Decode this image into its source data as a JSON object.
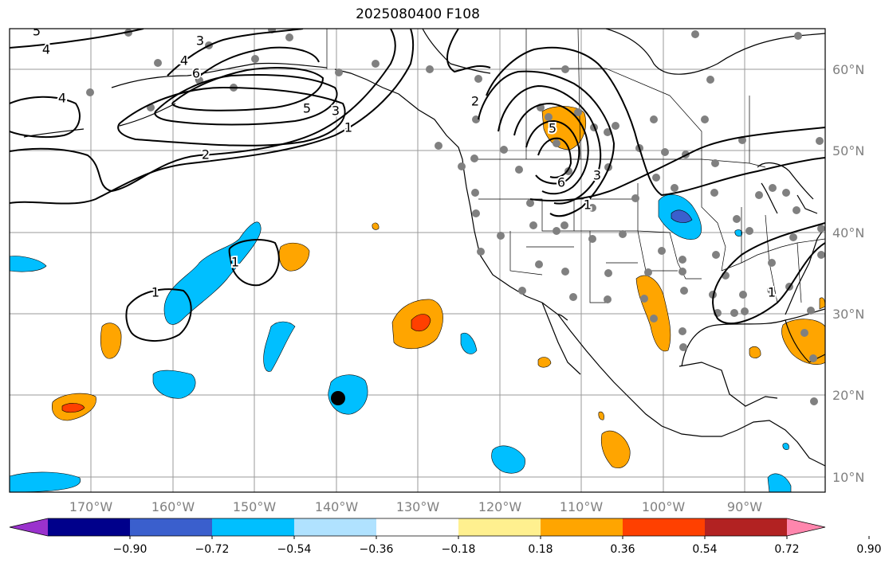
{
  "title": "2025080400 F108",
  "lon_labels": [
    "170°W",
    "160°W",
    "150°W",
    "140°W",
    "130°W",
    "120°W",
    "110°W",
    "100°W",
    "90°W"
  ],
  "lat_labels": [
    "60°N",
    "50°N",
    "40°N",
    "30°N",
    "20°N",
    "10°N"
  ],
  "colorbar": {
    "colors": [
      "#9a32cd",
      "#00008b",
      "#3a5fcd",
      "#00bfff",
      "#b0e2ff",
      "#ffffff",
      "#fff08f",
      "#ffa500",
      "#ff4000",
      "#b22222",
      "#ff86ad"
    ],
    "ticks": [
      "−0.90",
      "−0.72",
      "−0.54",
      "−0.36",
      "−0.18",
      "0.18",
      "0.36",
      "0.54",
      "0.72",
      "0.90"
    ]
  },
  "contour_labels": [
    {
      "name": "contour-label-5-nw",
      "text": "5"
    },
    {
      "name": "contour-label-4-nw",
      "text": "4"
    },
    {
      "name": "contour-label-3-alaska",
      "text": "3"
    },
    {
      "name": "contour-label-4-alaska",
      "text": "4"
    },
    {
      "name": "contour-label-6-alaska",
      "text": "6"
    },
    {
      "name": "contour-label-4-west",
      "text": "4"
    },
    {
      "name": "contour-label-5-gulf",
      "text": "5"
    },
    {
      "name": "contour-label-3-gulf",
      "text": "3"
    },
    {
      "name": "contour-label-1-gulf",
      "text": "1"
    },
    {
      "name": "contour-label-2-pacific",
      "text": "2"
    },
    {
      "name": "contour-label-2-canada",
      "text": "2"
    },
    {
      "name": "contour-label-5-canada",
      "text": "5"
    },
    {
      "name": "contour-label-6-canada",
      "text": "6"
    },
    {
      "name": "contour-label-3-canada",
      "text": "3"
    },
    {
      "name": "contour-label-1-canada",
      "text": "1"
    },
    {
      "name": "contour-label-1-pacific-a",
      "text": "1"
    },
    {
      "name": "contour-label-1-pacific-b",
      "text": "1"
    },
    {
      "name": "contour-label-1-southeast",
      "text": "1"
    }
  ]
}
